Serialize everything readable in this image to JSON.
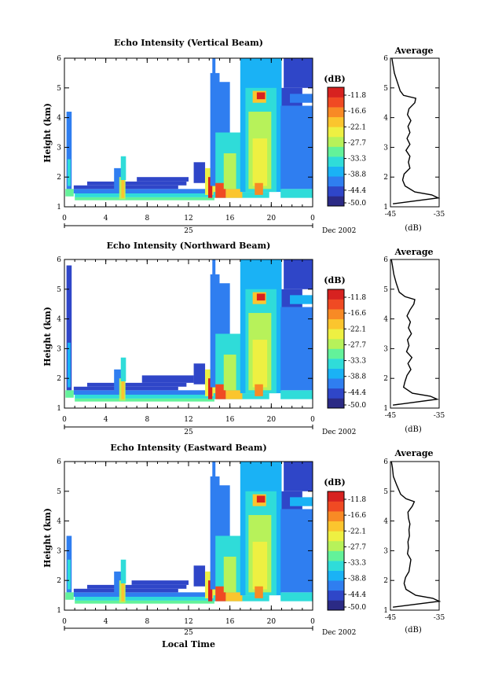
{
  "chart_data": [
    {
      "type": "heatmap",
      "title": "Echo Intensity (Vertical Beam)",
      "ylabel": "Height (km)",
      "xlabel": "",
      "xlim": [
        0,
        24
      ],
      "ylim": [
        1,
        6
      ],
      "x_ticks": [
        "0",
        "4",
        "8",
        "12",
        "16",
        "20",
        "0"
      ],
      "y_ticks": [
        "1",
        "2",
        "3",
        "4",
        "5",
        "6"
      ],
      "date_day": "25",
      "date_label": "Dec 2002",
      "colorbar": {
        "label": "(dB)",
        "ticks": [
          "-11.8",
          "-16.6",
          "-22.1",
          "-27.7",
          "-33.3",
          "-38.8",
          "-44.4",
          "-50.0"
        ],
        "range": [
          -52.8,
          -8.9
        ]
      },
      "average_profile": {
        "title": "Average",
        "xlabel": "(dB)",
        "x_ticks": [
          "-45",
          "-35"
        ],
        "xlim": [
          -45,
          -35
        ],
        "height": [
          1.1,
          1.3,
          1.4,
          1.5,
          1.7,
          1.9,
          2.1,
          2.3,
          2.5,
          2.7,
          2.9,
          3.1,
          3.3,
          3.5,
          3.7,
          3.9,
          4.1,
          4.3,
          4.5,
          4.65,
          4.75,
          4.9,
          5.2,
          5.5,
          5.8,
          6.0
        ],
        "values": [
          -44.5,
          -35.2,
          -36.5,
          -40.0,
          -42.0,
          -42.5,
          -42.2,
          -41.0,
          -41.3,
          -41.0,
          -41.8,
          -41.0,
          -41.6,
          -41.0,
          -41.4,
          -40.8,
          -41.5,
          -41.2,
          -40.0,
          -39.8,
          -42.3,
          -43.0,
          -43.6,
          -44.2,
          -44.5,
          -44.7
        ]
      },
      "cells": [
        {
          "t0": 0.1,
          "t1": 0.9,
          "h0": 1.35,
          "h1": 1.6,
          "v": -34
        },
        {
          "t0": 0.2,
          "t1": 0.7,
          "h0": 1.6,
          "h1": 4.2,
          "v": -45
        },
        {
          "t0": 0.3,
          "t1": 0.6,
          "h0": 1.7,
          "h1": 2.6,
          "v": -38
        },
        {
          "t0": 0.9,
          "t1": 14.5,
          "h0": 1.45,
          "h1": 1.6,
          "v": -44
        },
        {
          "t0": 0.9,
          "t1": 11.0,
          "h0": 1.6,
          "h1": 1.72,
          "v": -47
        },
        {
          "t0": 2.2,
          "t1": 11.8,
          "h0": 1.72,
          "h1": 1.85,
          "v": -48
        },
        {
          "t0": 7.0,
          "t1": 12.0,
          "h0": 1.85,
          "h1": 2.0,
          "v": -49
        },
        {
          "t0": 1.0,
          "t1": 14.5,
          "h0": 1.32,
          "h1": 1.45,
          "v": -37
        },
        {
          "t0": 1.0,
          "t1": 14.5,
          "h0": 1.22,
          "h1": 1.32,
          "v": -33
        },
        {
          "t0": 4.8,
          "t1": 5.6,
          "h0": 1.6,
          "h1": 2.3,
          "v": -43
        },
        {
          "t0": 5.3,
          "t1": 5.9,
          "h0": 1.25,
          "h1": 2.0,
          "v": -30
        },
        {
          "t0": 5.5,
          "t1": 5.8,
          "h0": 1.3,
          "h1": 1.9,
          "v": -20
        },
        {
          "t0": 5.45,
          "t1": 5.95,
          "h0": 1.9,
          "h1": 2.7,
          "v": -37
        },
        {
          "t0": 12.5,
          "t1": 13.6,
          "h0": 1.8,
          "h1": 2.5,
          "v": -46
        },
        {
          "t0": 13.6,
          "t1": 14.6,
          "h0": 1.4,
          "h1": 2.3,
          "v": -26
        },
        {
          "t0": 13.9,
          "t1": 14.3,
          "h0": 1.3,
          "h1": 2.0,
          "v": -12
        },
        {
          "t0": 14.1,
          "t1": 15.0,
          "h0": 1.7,
          "h1": 5.5,
          "v": -44
        },
        {
          "t0": 14.3,
          "t1": 14.6,
          "h0": 5.0,
          "h1": 6.0,
          "v": -45
        },
        {
          "t0": 14.4,
          "t1": 19.8,
          "h0": 1.3,
          "h1": 1.5,
          "v": -36
        },
        {
          "t0": 14.6,
          "t1": 17.5,
          "h0": 1.5,
          "h1": 3.5,
          "v": -37
        },
        {
          "t0": 14.6,
          "t1": 16.0,
          "h0": 3.5,
          "h1": 5.2,
          "v": -42
        },
        {
          "t0": 14.6,
          "t1": 15.6,
          "h0": 1.3,
          "h1": 1.8,
          "v": -15
        },
        {
          "t0": 15.6,
          "t1": 17.2,
          "h0": 1.3,
          "h1": 1.6,
          "v": -21
        },
        {
          "t0": 15.4,
          "t1": 16.6,
          "h0": 1.6,
          "h1": 2.8,
          "v": -30
        },
        {
          "t0": 17.0,
          "t1": 21.0,
          "h0": 1.5,
          "h1": 6.0,
          "v": -41
        },
        {
          "t0": 17.5,
          "t1": 20.5,
          "h0": 1.5,
          "h1": 5.0,
          "v": -35
        },
        {
          "t0": 17.8,
          "t1": 20.0,
          "h0": 1.6,
          "h1": 4.2,
          "v": -30
        },
        {
          "t0": 18.2,
          "t1": 19.6,
          "h0": 1.7,
          "h1": 3.3,
          "v": -26
        },
        {
          "t0": 18.4,
          "t1": 19.2,
          "h0": 1.4,
          "h1": 1.8,
          "v": -18
        },
        {
          "t0": 18.2,
          "t1": 19.5,
          "h0": 4.5,
          "h1": 4.9,
          "v": -22
        },
        {
          "t0": 18.6,
          "t1": 19.4,
          "h0": 4.62,
          "h1": 4.85,
          "v": -8.9
        },
        {
          "t0": 20.9,
          "t1": 24.0,
          "h0": 1.3,
          "h1": 1.6,
          "v": -37
        },
        {
          "t0": 20.9,
          "t1": 24.0,
          "h0": 1.6,
          "h1": 4.4,
          "v": -44
        },
        {
          "t0": 21.0,
          "t1": 23.0,
          "h0": 4.4,
          "h1": 5.0,
          "v": -46
        },
        {
          "t0": 21.2,
          "t1": 24.0,
          "h0": 5.0,
          "h1": 6.0,
          "v": -49
        },
        {
          "t0": 21.8,
          "t1": 24.0,
          "h0": 4.5,
          "h1": 4.8,
          "v": -42
        }
      ]
    },
    {
      "type": "heatmap",
      "title": "Echo Intensity (Northward Beam)",
      "ylabel": "Height (km)",
      "xlabel": "",
      "xlim": [
        0,
        24
      ],
      "ylim": [
        1,
        6
      ],
      "x_ticks": [
        "0",
        "4",
        "8",
        "12",
        "16",
        "20",
        "0"
      ],
      "y_ticks": [
        "1",
        "2",
        "3",
        "4",
        "5",
        "6"
      ],
      "date_day": "25",
      "date_label": "Dec 2002",
      "colorbar": {
        "label": "(dB)",
        "ticks": [
          "-11.8",
          "-16.6",
          "-22.1",
          "-27.7",
          "-33.3",
          "-38.8",
          "-44.4",
          "-50.0"
        ],
        "range": [
          -52.8,
          -8.9
        ]
      },
      "average_profile": {
        "title": "Average",
        "xlabel": "(dB)",
        "x_ticks": [
          "-45",
          "-35"
        ],
        "xlim": [
          -45,
          -35
        ],
        "height": [
          1.1,
          1.3,
          1.4,
          1.5,
          1.7,
          1.9,
          2.1,
          2.3,
          2.5,
          2.7,
          2.9,
          3.1,
          3.3,
          3.5,
          3.7,
          3.9,
          4.1,
          4.3,
          4.5,
          4.65,
          4.75,
          4.9,
          5.2,
          5.5,
          5.8,
          6.0
        ],
        "values": [
          -44.5,
          -35.4,
          -36.8,
          -40.5,
          -42.3,
          -42.0,
          -41.6,
          -40.8,
          -41.4,
          -40.6,
          -41.7,
          -41.2,
          -41.5,
          -40.7,
          -41.3,
          -40.9,
          -41.6,
          -41.0,
          -40.2,
          -40.0,
          -42.0,
          -43.2,
          -43.8,
          -44.3,
          -44.6,
          -44.8
        ]
      },
      "cells": [
        {
          "t0": 0.1,
          "t1": 0.9,
          "h0": 1.35,
          "h1": 1.6,
          "v": -33
        },
        {
          "t0": 0.2,
          "t1": 0.7,
          "h0": 1.6,
          "h1": 5.8,
          "v": -46
        },
        {
          "t0": 0.3,
          "t1": 0.6,
          "h0": 1.7,
          "h1": 3.2,
          "v": -39
        },
        {
          "t0": 0.9,
          "t1": 14.5,
          "h0": 1.45,
          "h1": 1.6,
          "v": -44
        },
        {
          "t0": 0.9,
          "t1": 11.0,
          "h0": 1.6,
          "h1": 1.72,
          "v": -47
        },
        {
          "t0": 2.2,
          "t1": 11.8,
          "h0": 1.72,
          "h1": 1.85,
          "v": -48
        },
        {
          "t0": 7.5,
          "t1": 12.5,
          "h0": 1.85,
          "h1": 2.1,
          "v": -49
        },
        {
          "t0": 1.0,
          "t1": 14.5,
          "h0": 1.32,
          "h1": 1.45,
          "v": -37
        },
        {
          "t0": 1.0,
          "t1": 14.5,
          "h0": 1.22,
          "h1": 1.32,
          "v": -33
        },
        {
          "t0": 4.8,
          "t1": 5.6,
          "h0": 1.6,
          "h1": 2.3,
          "v": -43
        },
        {
          "t0": 5.3,
          "t1": 5.9,
          "h0": 1.25,
          "h1": 2.0,
          "v": -30
        },
        {
          "t0": 5.5,
          "t1": 5.8,
          "h0": 1.3,
          "h1": 1.9,
          "v": -20
        },
        {
          "t0": 5.45,
          "t1": 5.95,
          "h0": 1.9,
          "h1": 2.7,
          "v": -37
        },
        {
          "t0": 12.5,
          "t1": 13.6,
          "h0": 1.8,
          "h1": 2.5,
          "v": -46
        },
        {
          "t0": 13.6,
          "t1": 14.6,
          "h0": 1.4,
          "h1": 2.3,
          "v": -26
        },
        {
          "t0": 13.9,
          "t1": 14.3,
          "h0": 1.3,
          "h1": 2.0,
          "v": -12
        },
        {
          "t0": 14.1,
          "t1": 15.0,
          "h0": 1.7,
          "h1": 5.5,
          "v": -44
        },
        {
          "t0": 14.3,
          "t1": 14.6,
          "h0": 5.0,
          "h1": 6.0,
          "v": -45
        },
        {
          "t0": 14.4,
          "t1": 19.8,
          "h0": 1.3,
          "h1": 1.5,
          "v": -36
        },
        {
          "t0": 14.6,
          "t1": 17.5,
          "h0": 1.5,
          "h1": 3.5,
          "v": -37
        },
        {
          "t0": 14.6,
          "t1": 16.0,
          "h0": 3.5,
          "h1": 5.2,
          "v": -42
        },
        {
          "t0": 14.6,
          "t1": 15.6,
          "h0": 1.3,
          "h1": 1.8,
          "v": -14
        },
        {
          "t0": 15.6,
          "t1": 17.2,
          "h0": 1.3,
          "h1": 1.6,
          "v": -21
        },
        {
          "t0": 15.4,
          "t1": 16.6,
          "h0": 1.6,
          "h1": 2.8,
          "v": -30
        },
        {
          "t0": 17.0,
          "t1": 21.0,
          "h0": 1.5,
          "h1": 6.0,
          "v": -41
        },
        {
          "t0": 17.5,
          "t1": 20.5,
          "h0": 1.5,
          "h1": 5.0,
          "v": -35
        },
        {
          "t0": 17.8,
          "t1": 20.0,
          "h0": 1.6,
          "h1": 4.2,
          "v": -30
        },
        {
          "t0": 18.2,
          "t1": 19.6,
          "h0": 1.7,
          "h1": 3.3,
          "v": -26
        },
        {
          "t0": 18.4,
          "t1": 19.2,
          "h0": 1.4,
          "h1": 1.8,
          "v": -18
        },
        {
          "t0": 18.2,
          "t1": 19.5,
          "h0": 4.5,
          "h1": 4.9,
          "v": -22
        },
        {
          "t0": 18.6,
          "t1": 19.4,
          "h0": 4.62,
          "h1": 4.85,
          "v": -8.9
        },
        {
          "t0": 20.9,
          "t1": 24.0,
          "h0": 1.3,
          "h1": 1.6,
          "v": -37
        },
        {
          "t0": 20.9,
          "t1": 24.0,
          "h0": 1.6,
          "h1": 4.4,
          "v": -44
        },
        {
          "t0": 21.0,
          "t1": 23.0,
          "h0": 4.4,
          "h1": 5.0,
          "v": -46
        },
        {
          "t0": 21.2,
          "t1": 24.0,
          "h0": 5.0,
          "h1": 6.0,
          "v": -49
        },
        {
          "t0": 21.8,
          "t1": 24.0,
          "h0": 4.5,
          "h1": 4.8,
          "v": -40
        }
      ]
    },
    {
      "type": "heatmap",
      "title": "Echo Intensity (Eastward Beam)",
      "ylabel": "Height (km)",
      "xlabel": "Local Time",
      "xlim": [
        0,
        24
      ],
      "ylim": [
        1,
        6
      ],
      "x_ticks": [
        "0",
        "4",
        "8",
        "12",
        "16",
        "20",
        "0"
      ],
      "y_ticks": [
        "1",
        "2",
        "3",
        "4",
        "5",
        "6"
      ],
      "date_day": "25",
      "date_label": "Dec 2002",
      "colorbar": {
        "label": "(dB)",
        "ticks": [
          "-11.8",
          "-16.6",
          "-22.1",
          "-27.7",
          "-33.3",
          "-38.8",
          "-44.4",
          "-50.0"
        ],
        "range": [
          -52.8,
          -8.9
        ]
      },
      "average_profile": {
        "title": "Average",
        "xlabel": "(dB)",
        "x_ticks": [
          "-45",
          "-35"
        ],
        "xlim": [
          -45,
          -35
        ],
        "height": [
          1.1,
          1.3,
          1.4,
          1.5,
          1.7,
          1.9,
          2.1,
          2.3,
          2.5,
          2.7,
          2.9,
          3.1,
          3.3,
          3.5,
          3.7,
          3.9,
          4.1,
          4.3,
          4.5,
          4.65,
          4.75,
          4.9,
          5.2,
          5.5,
          5.8,
          6.0
        ],
        "values": [
          -44.5,
          -35.0,
          -36.3,
          -39.8,
          -41.8,
          -42.2,
          -41.9,
          -41.2,
          -41.0,
          -40.8,
          -41.5,
          -41.3,
          -41.4,
          -41.1,
          -41.2,
          -41.0,
          -41.3,
          -41.4,
          -40.5,
          -40.1,
          -41.8,
          -42.9,
          -43.7,
          -44.4,
          -44.6,
          -44.8
        ]
      },
      "cells": [
        {
          "t0": 0.1,
          "t1": 0.9,
          "h0": 1.35,
          "h1": 1.6,
          "v": -34
        },
        {
          "t0": 0.2,
          "t1": 0.7,
          "h0": 1.6,
          "h1": 3.5,
          "v": -45
        },
        {
          "t0": 0.3,
          "t1": 0.6,
          "h0": 1.7,
          "h1": 2.7,
          "v": -37
        },
        {
          "t0": 0.9,
          "t1": 14.5,
          "h0": 1.45,
          "h1": 1.6,
          "v": -44
        },
        {
          "t0": 0.9,
          "t1": 11.0,
          "h0": 1.6,
          "h1": 1.72,
          "v": -47
        },
        {
          "t0": 2.2,
          "t1": 11.8,
          "h0": 1.72,
          "h1": 1.85,
          "v": -48
        },
        {
          "t0": 6.5,
          "t1": 12.0,
          "h0": 1.85,
          "h1": 2.0,
          "v": -49
        },
        {
          "t0": 1.0,
          "t1": 14.5,
          "h0": 1.32,
          "h1": 1.45,
          "v": -37
        },
        {
          "t0": 1.0,
          "t1": 14.5,
          "h0": 1.22,
          "h1": 1.32,
          "v": -33
        },
        {
          "t0": 4.8,
          "t1": 5.6,
          "h0": 1.6,
          "h1": 2.3,
          "v": -43
        },
        {
          "t0": 5.3,
          "t1": 5.9,
          "h0": 1.25,
          "h1": 2.0,
          "v": -30
        },
        {
          "t0": 5.5,
          "t1": 5.8,
          "h0": 1.3,
          "h1": 1.9,
          "v": -20
        },
        {
          "t0": 5.45,
          "t1": 5.95,
          "h0": 1.9,
          "h1": 2.7,
          "v": -37
        },
        {
          "t0": 12.5,
          "t1": 13.6,
          "h0": 1.8,
          "h1": 2.5,
          "v": -46
        },
        {
          "t0": 13.6,
          "t1": 14.6,
          "h0": 1.4,
          "h1": 2.3,
          "v": -26
        },
        {
          "t0": 13.9,
          "t1": 14.3,
          "h0": 1.3,
          "h1": 2.0,
          "v": -12
        },
        {
          "t0": 14.1,
          "t1": 15.0,
          "h0": 1.7,
          "h1": 5.5,
          "v": -44
        },
        {
          "t0": 14.3,
          "t1": 14.6,
          "h0": 5.0,
          "h1": 6.0,
          "v": -45
        },
        {
          "t0": 14.4,
          "t1": 19.8,
          "h0": 1.3,
          "h1": 1.5,
          "v": -36
        },
        {
          "t0": 14.6,
          "t1": 17.5,
          "h0": 1.5,
          "h1": 3.5,
          "v": -37
        },
        {
          "t0": 14.6,
          "t1": 16.0,
          "h0": 3.5,
          "h1": 5.2,
          "v": -42
        },
        {
          "t0": 14.6,
          "t1": 15.6,
          "h0": 1.3,
          "h1": 1.8,
          "v": -15
        },
        {
          "t0": 15.6,
          "t1": 17.2,
          "h0": 1.3,
          "h1": 1.6,
          "v": -21
        },
        {
          "t0": 15.4,
          "t1": 16.6,
          "h0": 1.6,
          "h1": 2.8,
          "v": -30
        },
        {
          "t0": 17.0,
          "t1": 21.0,
          "h0": 1.5,
          "h1": 6.0,
          "v": -41
        },
        {
          "t0": 17.5,
          "t1": 20.5,
          "h0": 1.5,
          "h1": 5.0,
          "v": -35
        },
        {
          "t0": 17.8,
          "t1": 20.0,
          "h0": 1.6,
          "h1": 4.2,
          "v": -30
        },
        {
          "t0": 18.2,
          "t1": 19.6,
          "h0": 1.7,
          "h1": 3.3,
          "v": -26
        },
        {
          "t0": 18.4,
          "t1": 19.2,
          "h0": 1.4,
          "h1": 1.8,
          "v": -18
        },
        {
          "t0": 18.2,
          "t1": 19.5,
          "h0": 4.5,
          "h1": 4.9,
          "v": -22
        },
        {
          "t0": 18.6,
          "t1": 19.4,
          "h0": 4.62,
          "h1": 4.85,
          "v": -8.9
        },
        {
          "t0": 20.9,
          "t1": 24.0,
          "h0": 1.3,
          "h1": 1.6,
          "v": -37
        },
        {
          "t0": 20.9,
          "t1": 24.0,
          "h0": 1.6,
          "h1": 4.4,
          "v": -44
        },
        {
          "t0": 21.0,
          "t1": 23.0,
          "h0": 4.4,
          "h1": 5.0,
          "v": -46
        },
        {
          "t0": 21.2,
          "t1": 24.0,
          "h0": 5.0,
          "h1": 6.0,
          "v": -49
        },
        {
          "t0": 21.8,
          "t1": 24.0,
          "h0": 4.5,
          "h1": 4.8,
          "v": -41
        }
      ]
    }
  ],
  "colorbar_colors": [
    "#2b2a85",
    "#2f46c8",
    "#2f7ef0",
    "#1ab2f5",
    "#2fdcd9",
    "#63f29a",
    "#b7f25a",
    "#eef042",
    "#fbc52e",
    "#f88a25",
    "#f04a23",
    "#d72220"
  ]
}
